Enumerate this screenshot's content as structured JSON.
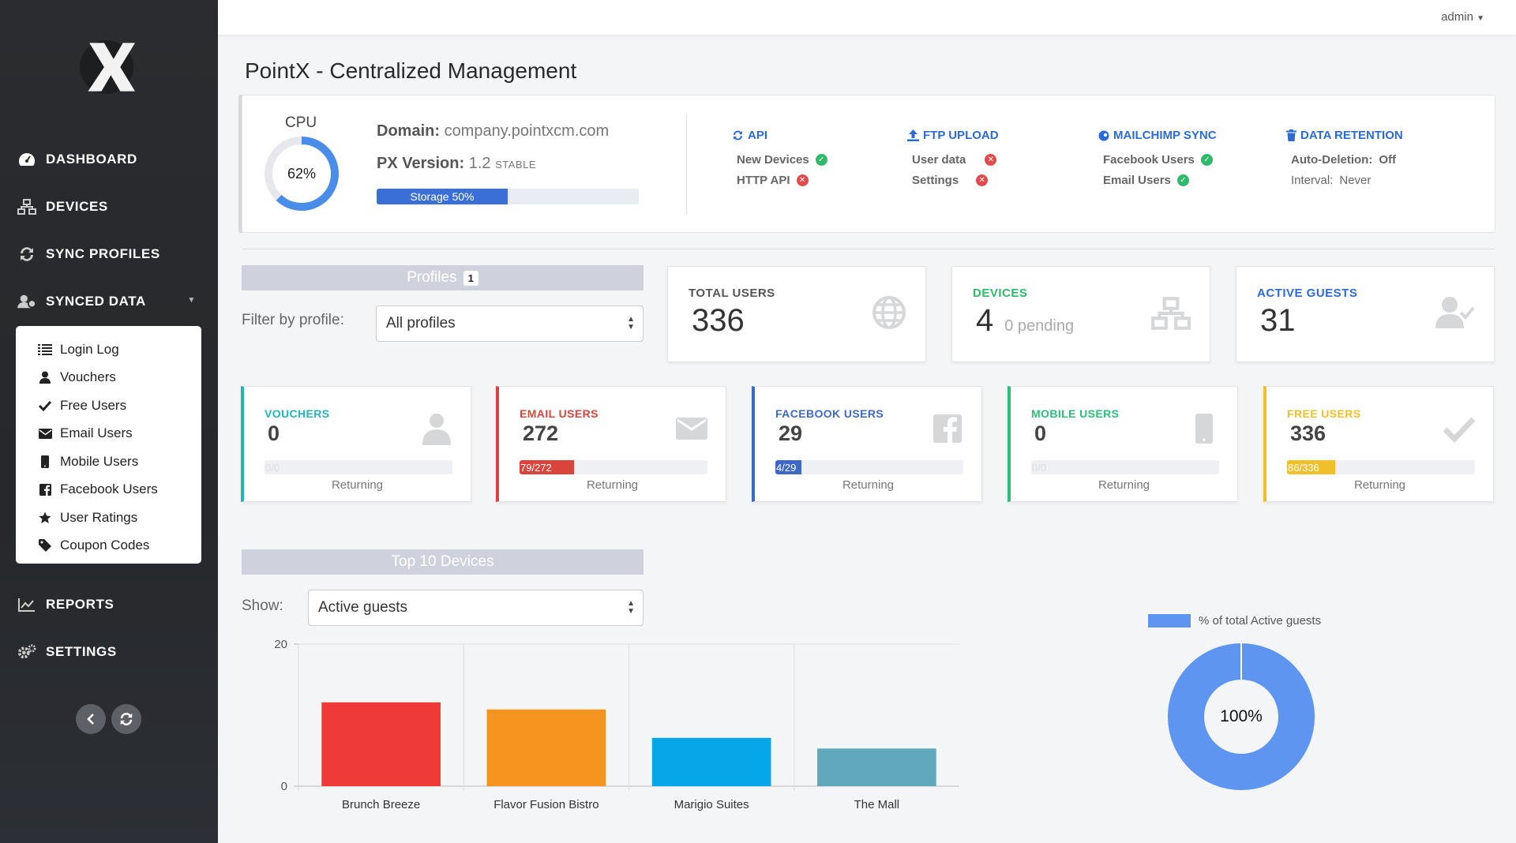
{
  "app": {
    "title": "PointX - Centralized Management",
    "user": "admin"
  },
  "sidebar": {
    "nav": [
      {
        "label": "DASHBOARD",
        "icon": "dashboard-icon"
      },
      {
        "label": "DEVICES",
        "icon": "network-icon"
      },
      {
        "label": "SYNC PROFILES",
        "icon": "sync-icon"
      },
      {
        "label": "SYNCED DATA",
        "icon": "users-icon"
      },
      {
        "label": "REPORTS",
        "icon": "chart-line-icon"
      },
      {
        "label": "SETTINGS",
        "icon": "gears-icon"
      }
    ],
    "submenu": [
      {
        "label": "Login Log",
        "icon": "list-icon"
      },
      {
        "label": "Vouchers",
        "icon": "user-icon"
      },
      {
        "label": "Free Users",
        "icon": "check-icon"
      },
      {
        "label": "Email Users",
        "icon": "envelope-icon"
      },
      {
        "label": "Mobile Users",
        "icon": "mobile-icon"
      },
      {
        "label": "Facebook Users",
        "icon": "facebook-icon"
      },
      {
        "label": "User Ratings",
        "icon": "star-icon"
      },
      {
        "label": "Coupon Codes",
        "icon": "tag-icon"
      }
    ]
  },
  "info": {
    "cpu_label": "CPU",
    "cpu_percent": 62,
    "cpu_text": "62%",
    "domain_label": "Domain:",
    "domain": "company.pointxcm.com",
    "version_label": "PX Version:",
    "version": "1.2",
    "version_tag": "STABLE",
    "storage_label": "Storage 50%",
    "storage_percent": 50,
    "services": [
      {
        "title": "API",
        "icon": "sync-icon",
        "rows": [
          {
            "label": "New Devices",
            "status": "ok"
          },
          {
            "label": "HTTP API",
            "status": "err"
          }
        ]
      },
      {
        "title": "FTP UPLOAD",
        "icon": "upload-icon",
        "rows": [
          {
            "label": "User data",
            "status": "err"
          },
          {
            "label": "Settings",
            "status": "err"
          }
        ]
      },
      {
        "title": "MAILCHIMP SYNC",
        "icon": "mailchimp-icon",
        "rows": [
          {
            "label": "Facebook Users",
            "status": "ok"
          },
          {
            "label": "Email Users",
            "status": "ok"
          }
        ]
      },
      {
        "title": "DATA RETENTION",
        "icon": "trash-icon",
        "rows": [
          {
            "label": "Auto-Deletion:",
            "value": "Off"
          },
          {
            "label": "Interval:",
            "value": "Never"
          }
        ]
      }
    ]
  },
  "profiles": {
    "header": "Profiles",
    "badge": "1",
    "filter_label": "Filter by profile:",
    "filter_value": "All profiles"
  },
  "stats": [
    {
      "title": "TOTAL USERS",
      "value": "336",
      "color": "#555555",
      "icon": "globe-icon"
    },
    {
      "title": "DEVICES",
      "value": "4",
      "extra": "0 pending",
      "color": "#2dbb6b",
      "icon": "network-icon"
    },
    {
      "title": "ACTIVE GUESTS",
      "value": "31",
      "color": "#2c6bd6",
      "icon": "user-check-icon"
    }
  ],
  "cards": [
    {
      "title": "VOUCHERS",
      "value": "0",
      "bar": "0/0",
      "returning": 0,
      "total": 0,
      "color": "#24b3b8",
      "sub": "Returning",
      "icon": "user-icon"
    },
    {
      "title": "EMAIL USERS",
      "value": "272",
      "bar": "79/272",
      "returning": 79,
      "total": 272,
      "color": "#d9453d",
      "sub": "Returning",
      "icon": "envelope-icon"
    },
    {
      "title": "FACEBOOK USERS",
      "value": "29",
      "bar": "4/29",
      "returning": 4,
      "total": 29,
      "color": "#3e68c8",
      "sub": "Returning",
      "icon": "facebook-icon"
    },
    {
      "title": "MOBILE USERS",
      "value": "0",
      "bar": "0/0",
      "returning": 0,
      "total": 0,
      "color": "#2cbf7a",
      "sub": "Returning",
      "icon": "mobile-icon"
    },
    {
      "title": "FREE USERS",
      "value": "336",
      "bar": "86/336",
      "returning": 86,
      "total": 336,
      "color": "#f0c02b",
      "sub": "Returning",
      "icon": "check-icon"
    }
  ],
  "devices": {
    "header": "Top 10 Devices",
    "show_label": "Show:",
    "show_value": "Active guests"
  },
  "chart_data": [
    {
      "type": "bar",
      "categories": [
        "Brunch Breeze",
        "Flavor Fusion Bistro",
        "Marigio Suites",
        "The Mall"
      ],
      "values": [
        11.8,
        10.8,
        6.8,
        5.3
      ],
      "colors": [
        "#ee3b37",
        "#f5951f",
        "#06a7e8",
        "#62a8bd"
      ],
      "ylim": [
        0,
        20
      ],
      "yticks": [
        "0",
        "20"
      ],
      "grid": true
    },
    {
      "type": "pie",
      "legend": "% of total Active guests",
      "legend_position": "top",
      "center_label": "100%",
      "values": [
        100
      ],
      "colors": [
        "#5e95f0"
      ]
    }
  ]
}
